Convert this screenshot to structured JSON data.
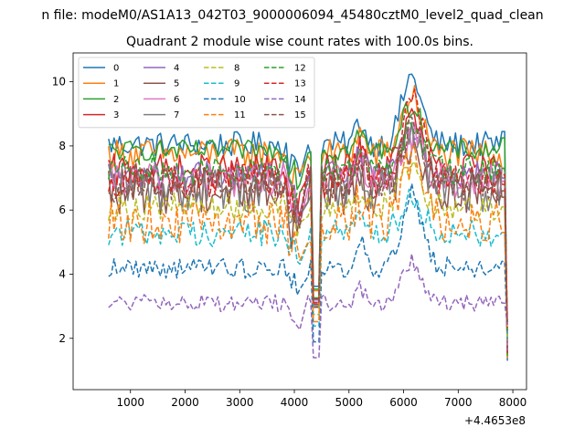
{
  "figure": {
    "suptitle": "n file: modeM0/AS1A13_042T03_9000006094_45480cztM0_level2_quad_clean"
  },
  "chart_data": {
    "type": "line",
    "title": "Quadrant 2 module wise count rates with 100.0s bins.",
    "xlabel": "",
    "ylabel": "",
    "x_offset_label": "+4.4653e8",
    "x_start": 600,
    "x_step": 50,
    "xlim": [
      -50,
      8250
    ],
    "ylim": [
      0.4,
      10.9
    ],
    "xticks": [
      1000,
      2000,
      3000,
      4000,
      5000,
      6000,
      7000,
      8000
    ],
    "yticks": [
      2,
      4,
      6,
      8,
      10
    ],
    "grid": false,
    "legend": {
      "placement": "upper-left",
      "columns": 4
    },
    "series": [
      {
        "name": "0",
        "color": "#1f77b4",
        "dash": "solid",
        "base": 8.05,
        "amp": 0.18,
        "bump": 2.1,
        "edge": 8.45
      },
      {
        "name": "1",
        "color": "#ff7f0e",
        "dash": "solid",
        "base": 7.75,
        "amp": 0.22,
        "bump": 1.8,
        "edge": 7.3
      },
      {
        "name": "2",
        "color": "#2ca02c",
        "dash": "solid",
        "base": 7.85,
        "amp": 0.15,
        "bump": 1.4,
        "edge": 8.25
      },
      {
        "name": "3",
        "color": "#d62728",
        "dash": "solid",
        "base": 7.2,
        "amp": 0.25,
        "bump": 1.6,
        "edge": 6.8
      },
      {
        "name": "4",
        "color": "#9467bd",
        "dash": "solid",
        "base": 7.1,
        "amp": 0.2,
        "bump": 1.5,
        "edge": 7.0
      },
      {
        "name": "5",
        "color": "#8c564b",
        "dash": "solid",
        "base": 6.6,
        "amp": 0.35,
        "bump": 1.6,
        "edge": 6.4
      },
      {
        "name": "6",
        "color": "#e377c2",
        "dash": "solid",
        "base": 6.95,
        "amp": 0.25,
        "bump": 1.4,
        "edge": 6.9
      },
      {
        "name": "7",
        "color": "#7f7f7f",
        "dash": "solid",
        "base": 6.7,
        "amp": 0.35,
        "bump": 1.6,
        "edge": 7.3
      },
      {
        "name": "8",
        "color": "#bcbd22",
        "dash": "dashed",
        "base": 6.1,
        "amp": 0.2,
        "bump": 1.3,
        "edge": 6.1
      },
      {
        "name": "9",
        "color": "#17becf",
        "dash": "dashed",
        "base": 5.3,
        "amp": 0.2,
        "bump": 1.2,
        "edge": 5.3
      },
      {
        "name": "10",
        "color": "#1f77b4",
        "dash": "dashed",
        "base": 4.2,
        "amp": 0.15,
        "bump": 2.3,
        "edge": 4.4
      },
      {
        "name": "11",
        "color": "#ff7f0e",
        "dash": "dashed",
        "base": 5.6,
        "amp": 0.3,
        "bump": 2.0,
        "edge": 5.3
      },
      {
        "name": "12",
        "color": "#2ca02c",
        "dash": "dashed",
        "base": 7.25,
        "amp": 0.2,
        "bump": 1.4,
        "edge": 7.3
      },
      {
        "name": "13",
        "color": "#d62728",
        "dash": "dashed",
        "base": 6.9,
        "amp": 0.25,
        "bump": 2.8,
        "edge": 7.1
      },
      {
        "name": "14",
        "color": "#9467bd",
        "dash": "dashed",
        "base": 3.1,
        "amp": 0.12,
        "bump": 1.3,
        "edge": 3.1
      },
      {
        "name": "15",
        "color": "#8c564b",
        "dash": "dashed",
        "base": 6.8,
        "amp": 0.25,
        "bump": 1.9,
        "edge": 6.6
      }
    ]
  }
}
